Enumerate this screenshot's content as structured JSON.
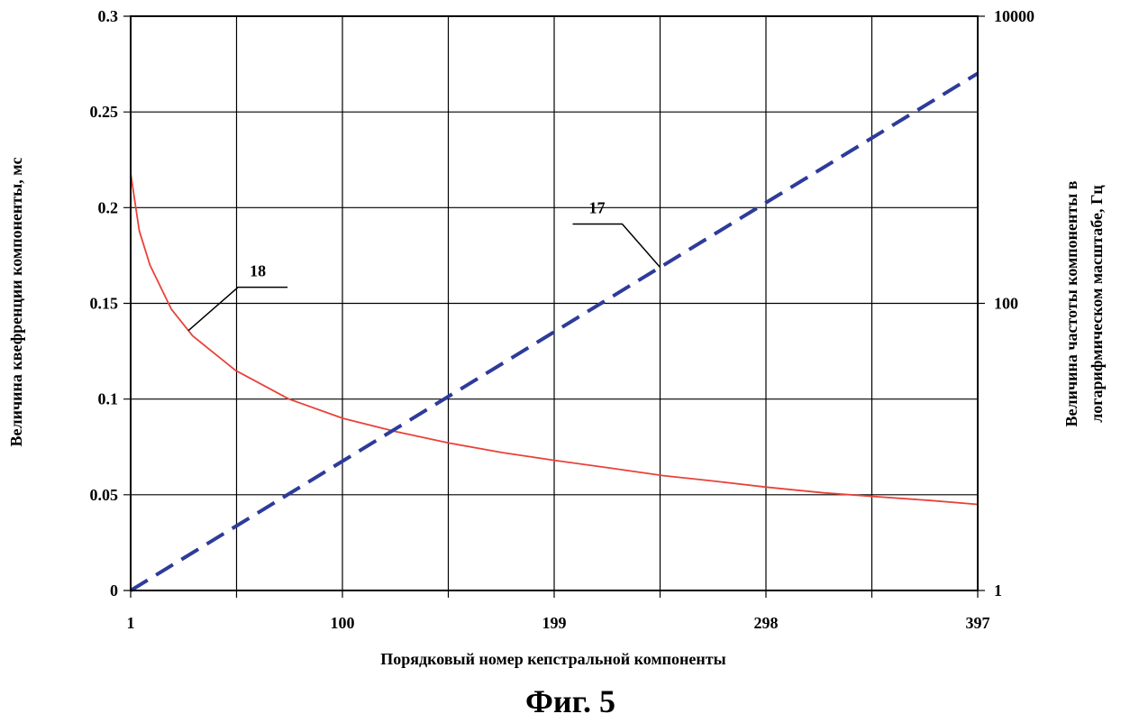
{
  "chart_data": {
    "type": "line",
    "caption": "Фиг. 5",
    "xlabel": "Порядковый номер кепстральной компоненты",
    "ylabel_left": "Величина квефренции компоненты, мс",
    "ylabel_right_line1": "Величина частоты компоненты в",
    "ylabel_right_line2": "логарифмическом масштабе, Гц",
    "x_range": [
      1,
      397
    ],
    "x_tick_labels": [
      "1",
      "100",
      "199",
      "298",
      "397"
    ],
    "x_tick_values": [
      1,
      100,
      199,
      298,
      397
    ],
    "x_grid_values": [
      1,
      50.5,
      100,
      149.5,
      199,
      248.5,
      298,
      347.5,
      397
    ],
    "y_left_range": [
      0,
      0.3
    ],
    "y_left_ticks": [
      "0",
      "0.05",
      "0.1",
      "0.15",
      "0.2",
      "0.25",
      "0.3"
    ],
    "y_left_tick_values": [
      0,
      0.05,
      0.1,
      0.15,
      0.2,
      0.25,
      0.3
    ],
    "y_right_scale": "log",
    "y_right_range": [
      1,
      10000
    ],
    "y_right_ticks": [
      "1",
      "100",
      "10000"
    ],
    "y_right_tick_values": [
      1,
      100,
      10000
    ],
    "grid": true,
    "series": [
      {
        "callout": "18",
        "axis": "left",
        "color": "#e8423a",
        "style": "solid",
        "x": [
          1,
          5,
          10,
          20,
          30,
          50,
          75,
          100,
          125,
          150,
          175,
          199,
          225,
          250,
          275,
          298,
          325,
          350,
          375,
          397
        ],
        "y": [
          0.218,
          0.188,
          0.17,
          0.147,
          0.133,
          0.115,
          0.1,
          0.09,
          0.083,
          0.077,
          0.072,
          0.068,
          0.064,
          0.06,
          0.057,
          0.054,
          0.051,
          0.049,
          0.047,
          0.045
        ]
      },
      {
        "callout": "17",
        "axis": "right",
        "color": "#2e3b9a",
        "style": "dashed",
        "x": [
          1,
          397
        ],
        "y": [
          1,
          4000
        ]
      }
    ],
    "callouts": [
      {
        "text": "18",
        "target_series": 0,
        "target_x": 28
      },
      {
        "text": "17",
        "target_series": 1,
        "target_x": 248.5
      }
    ]
  }
}
